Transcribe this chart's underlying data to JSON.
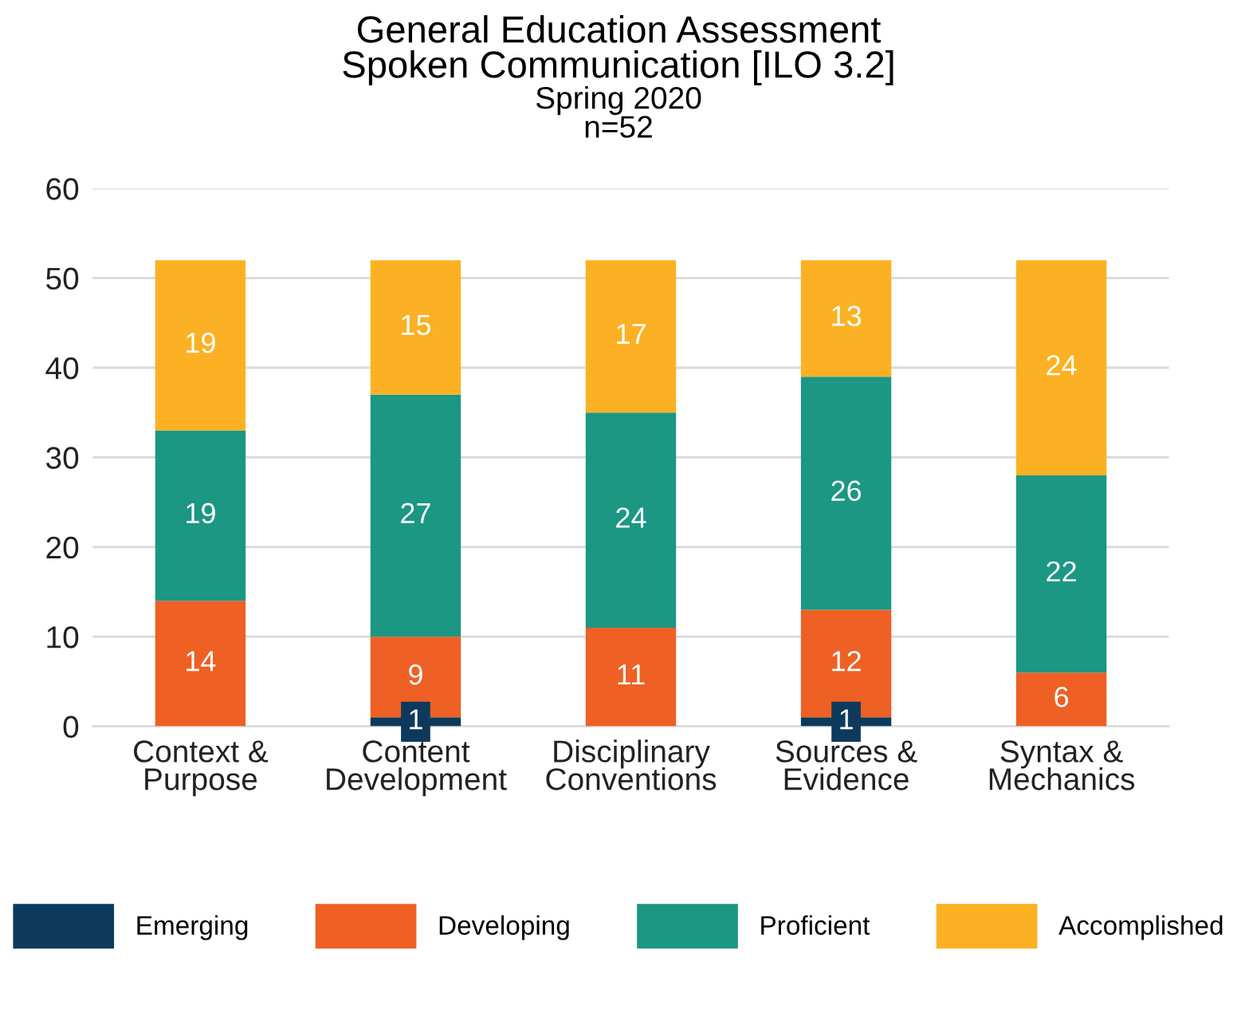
{
  "chart_data": {
    "type": "bar",
    "stacked": true,
    "title": "General Education Assessment\nSpoken Communication [ILO 3.2]",
    "subtitle": "Spring 2020\nn=52",
    "categories": [
      "Context &\nPurpose",
      "Content\nDevelopment",
      "Disciplinary\nConventions",
      "Sources &\nEvidence",
      "Syntax &\nMechanics"
    ],
    "series": [
      {
        "name": "Emerging",
        "color": "#0d3a5c",
        "values": [
          0,
          1,
          0,
          1,
          0
        ],
        "value_labels": [
          null,
          "1",
          null,
          "1",
          null
        ]
      },
      {
        "name": "Developing",
        "color": "#ee6024",
        "values": [
          14,
          9,
          11,
          12,
          6
        ],
        "value_labels": [
          "14",
          "9",
          "11",
          "12",
          "6"
        ]
      },
      {
        "name": "Proficient",
        "color": "#1b9783",
        "values": [
          19,
          27,
          24,
          26,
          22
        ],
        "value_labels": [
          "19",
          "27",
          "24",
          "26",
          "22"
        ]
      },
      {
        "name": "Accomplished",
        "color": "#fbb123",
        "values": [
          19,
          15,
          17,
          13,
          24
        ],
        "value_labels": [
          "19",
          "15",
          "17",
          "13",
          "24"
        ]
      }
    ],
    "ylim": [
      0,
      60
    ],
    "yticks": [
      0,
      10,
      20,
      30,
      40,
      50,
      60
    ],
    "grid": "y",
    "legend": "bottom"
  }
}
